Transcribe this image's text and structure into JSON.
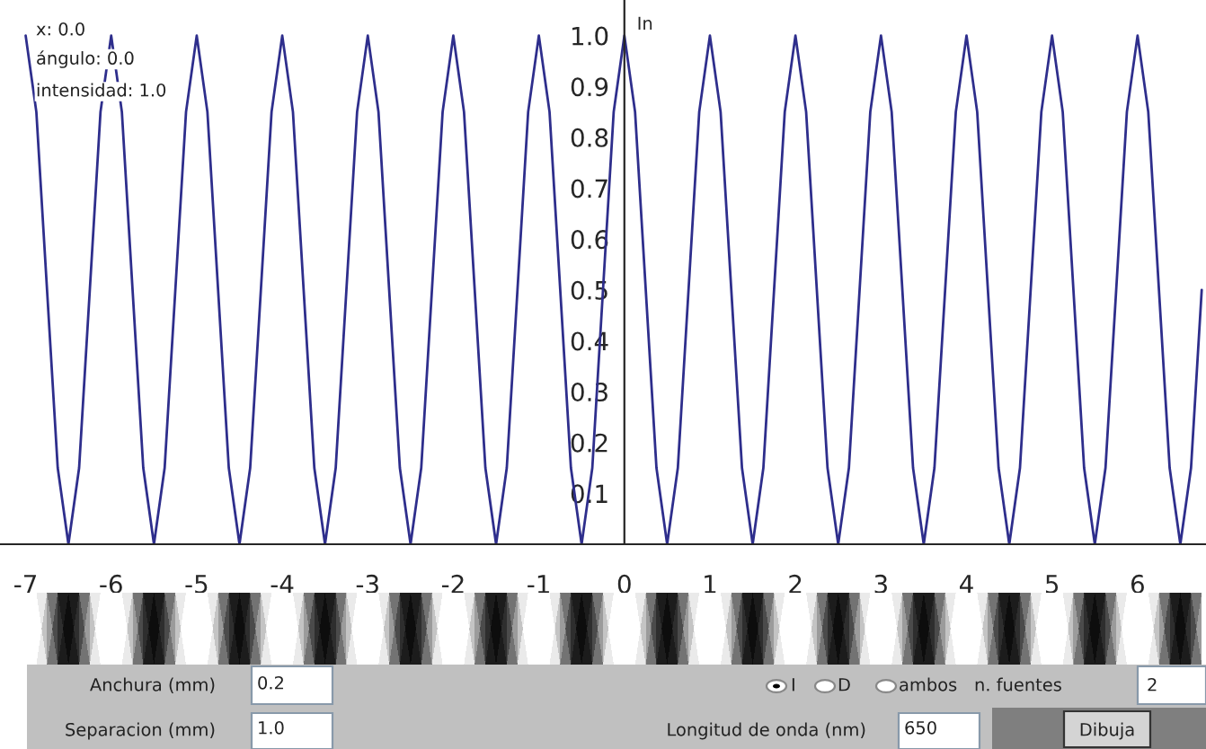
{
  "chart_data": {
    "type": "line",
    "ylabel": "In",
    "x": [
      -7,
      -6.875,
      -6.75,
      -6.625,
      -6.5,
      -6.375,
      -6.25,
      -6.125,
      -6,
      -5.875,
      -5.75,
      -5.625,
      -5.5,
      -5.375,
      -5.25,
      -5.125,
      -5,
      -4.875,
      -4.75,
      -4.625,
      -4.5,
      -4.375,
      -4.25,
      -4.125,
      -4,
      -3.875,
      -3.75,
      -3.625,
      -3.5,
      -3.375,
      -3.25,
      -3.125,
      -3,
      -2.875,
      -2.75,
      -2.625,
      -2.5,
      -2.375,
      -2.25,
      -2.125,
      -2,
      -1.875,
      -1.75,
      -1.625,
      -1.5,
      -1.375,
      -1.25,
      -1.125,
      -1,
      -0.875,
      -0.75,
      -0.625,
      -0.5,
      -0.375,
      -0.25,
      -0.125,
      0,
      0.125,
      0.25,
      0.375,
      0.5,
      0.625,
      0.75,
      0.875,
      1,
      1.125,
      1.25,
      1.375,
      1.5,
      1.625,
      1.75,
      1.875,
      2,
      2.125,
      2.25,
      2.375,
      2.5,
      2.625,
      2.75,
      2.875,
      3,
      3.125,
      3.25,
      3.375,
      3.5,
      3.625,
      3.75,
      3.875,
      4,
      4.125,
      4.25,
      4.375,
      4.5,
      4.625,
      4.75,
      4.875,
      5,
      5.125,
      5.25,
      5.375,
      5.5,
      5.625,
      5.75,
      5.875,
      6,
      6.125,
      6.25,
      6.375,
      6.5,
      6.625,
      6.75
    ],
    "series": [
      {
        "color": "#2e2e8c",
        "values": [
          1,
          0.85,
          0.5,
          0.15,
          0,
          0.15,
          0.5,
          0.85,
          1,
          0.85,
          0.5,
          0.15,
          0,
          0.15,
          0.5,
          0.85,
          1,
          0.85,
          0.5,
          0.15,
          0,
          0.15,
          0.5,
          0.85,
          1,
          0.85,
          0.5,
          0.15,
          0,
          0.15,
          0.5,
          0.85,
          1,
          0.85,
          0.5,
          0.15,
          0,
          0.15,
          0.5,
          0.85,
          1,
          0.85,
          0.5,
          0.15,
          0,
          0.15,
          0.5,
          0.85,
          1,
          0.85,
          0.5,
          0.15,
          0,
          0.15,
          0.5,
          0.85,
          1,
          0.85,
          0.5,
          0.15,
          0,
          0.15,
          0.5,
          0.85,
          1,
          0.85,
          0.5,
          0.15,
          0,
          0.15,
          0.5,
          0.85,
          1,
          0.85,
          0.5,
          0.15,
          0,
          0.15,
          0.5,
          0.85,
          1,
          0.85,
          0.5,
          0.15,
          0,
          0.15,
          0.5,
          0.85,
          1,
          0.85,
          0.5,
          0.15,
          0,
          0.15,
          0.5,
          0.85,
          1,
          0.85,
          0.5,
          0.15,
          0,
          0.15,
          0.5,
          0.85,
          1,
          0.85,
          0.5,
          0.15,
          0,
          0.15,
          0.5
        ]
      }
    ],
    "xlim": [
      -7.3,
      6.8
    ],
    "ylim": [
      0,
      1.07
    ],
    "xticks": [
      -7,
      -6,
      -5,
      -4,
      -3,
      -2,
      -1,
      0,
      1,
      2,
      3,
      4,
      5,
      6
    ],
    "yticks": [
      0.1,
      0.2,
      0.3,
      0.4,
      0.5,
      0.6,
      0.7,
      0.8,
      0.9,
      {
        "value": 1,
        "label": "1.0"
      }
    ],
    "marker": "none",
    "line_style": "solid",
    "grid": false,
    "legend": false,
    "annotations": [
      "x: 0.0",
      "ángulo: 0.0",
      "intensidad: 1.0",
      "Anchura (mm)",
      "0.2",
      "Separacion (mm)",
      "1.0",
      "I",
      "D",
      "ambos",
      "n. fuentes",
      "2",
      "Longitud de onda (nm)",
      "650",
      "Dibuja"
    ]
  }
}
